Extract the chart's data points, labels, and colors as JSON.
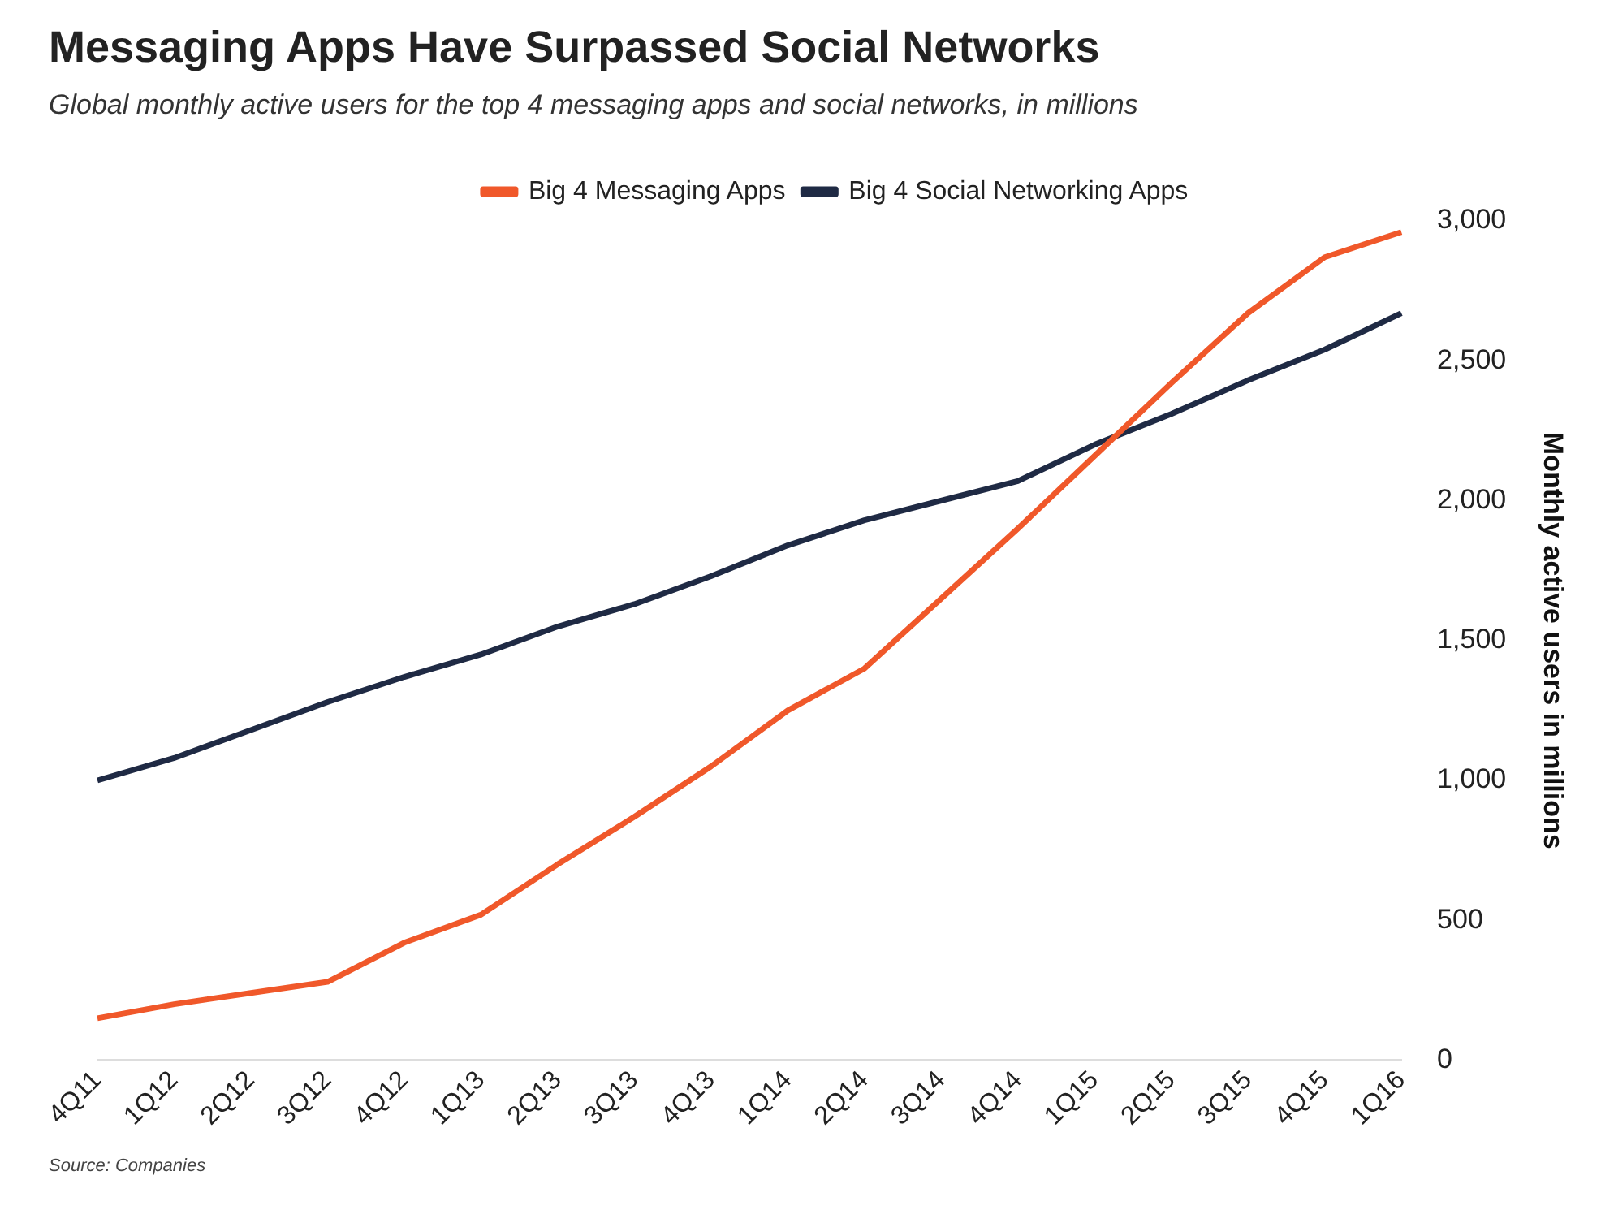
{
  "chart_data": {
    "type": "line",
    "title": "Messaging Apps Have Surpassed Social Networks",
    "subtitle": "Global monthly active users for the top 4 messaging apps and social networks, in millions",
    "ylabel": "Monthly active users in millions",
    "categories": [
      "4Q11",
      "1Q12",
      "2Q12",
      "3Q12",
      "4Q12",
      "1Q13",
      "2Q13",
      "3Q13",
      "4Q13",
      "1Q14",
      "2Q14",
      "3Q14",
      "4Q14",
      "1Q15",
      "2Q15",
      "3Q15",
      "4Q15",
      "1Q16"
    ],
    "series": [
      {
        "name": "Big 4 Messaging Apps",
        "color": "#f0582a",
        "values": [
          150,
          200,
          240,
          280,
          420,
          520,
          700,
          870,
          1050,
          1250,
          1400,
          1650,
          1900,
          2160,
          2420,
          2670,
          2870,
          2960
        ]
      },
      {
        "name": "Big 4 Social Networking Apps",
        "color": "#1f2a44",
        "values": [
          1000,
          1080,
          1180,
          1280,
          1370,
          1450,
          1550,
          1630,
          1730,
          1840,
          1930,
          2000,
          2070,
          2200,
          2310,
          2430,
          2540,
          2670
        ]
      }
    ],
    "ylim": [
      0,
      3000
    ],
    "yticks": [
      {
        "value": 0,
        "label": "0"
      },
      {
        "value": 500,
        "label": "500"
      },
      {
        "value": 1000,
        "label": "1,000"
      },
      {
        "value": 1500,
        "label": "1,500"
      },
      {
        "value": 2000,
        "label": "2,000"
      },
      {
        "value": 2500,
        "label": "2,500"
      },
      {
        "value": 3000,
        "label": "3,000"
      }
    ],
    "grid": false,
    "legend": "top",
    "marker": "none",
    "line_style": "solid",
    "annotations": [
      "Source: Companies"
    ]
  }
}
